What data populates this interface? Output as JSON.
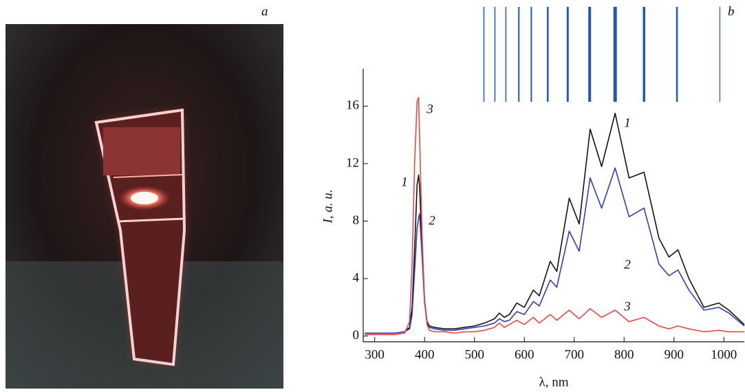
{
  "panel_labels": [
    "a",
    "b"
  ],
  "chart_data": {
    "type": "line",
    "xlabel": "λ, nm",
    "ylabel": "I, a. u.",
    "x": [
      280,
      300,
      320,
      340,
      360,
      370,
      375,
      380,
      385,
      388,
      390,
      395,
      400,
      405,
      410,
      420,
      440,
      460,
      480,
      500,
      520,
      540,
      550,
      560,
      570,
      585,
      600,
      618,
      630,
      652,
      665,
      690,
      710,
      732,
      755,
      782,
      810,
      840,
      870,
      890,
      908,
      930,
      960,
      990,
      1010,
      1041
    ],
    "series": [
      {
        "name": "1",
        "color": "#111111",
        "values": [
          0.2,
          0.2,
          0.2,
          0.2,
          0.3,
          0.6,
          2,
          6,
          10.5,
          11.2,
          10.5,
          6,
          2.5,
          1,
          0.7,
          0.6,
          0.5,
          0.5,
          0.6,
          0.7,
          0.9,
          1.2,
          1.6,
          1.3,
          1.5,
          2.3,
          2.0,
          3.2,
          2.8,
          5.2,
          4.5,
          9.6,
          7.8,
          14.4,
          11.8,
          15.5,
          11.0,
          11.4,
          6.8,
          5.5,
          6.0,
          4.0,
          2.0,
          2.3,
          1.8,
          0.8
        ]
      },
      {
        "name": "2",
        "color": "#2b3fb0",
        "values": [
          0.2,
          0.2,
          0.2,
          0.2,
          0.3,
          0.5,
          1.5,
          4.5,
          7.5,
          8.2,
          8.5,
          5.5,
          2.3,
          0.9,
          0.6,
          0.5,
          0.4,
          0.4,
          0.5,
          0.6,
          0.7,
          0.9,
          1.2,
          1.0,
          1.1,
          1.7,
          1.5,
          2.4,
          2.1,
          3.9,
          3.4,
          7.3,
          5.9,
          11.0,
          8.9,
          11.7,
          8.3,
          8.9,
          5.0,
          4.2,
          4.6,
          3.2,
          1.8,
          2.0,
          1.6,
          0.7
        ]
      },
      {
        "name": "3",
        "color": "#ee4444",
        "values": [
          0.1,
          0.1,
          0.1,
          0.1,
          0.2,
          1.0,
          5,
          12,
          16.3,
          16.6,
          14,
          7,
          2.5,
          0.8,
          0.4,
          0.3,
          0.3,
          0.2,
          0.3,
          0.3,
          0.4,
          0.6,
          0.9,
          0.6,
          0.8,
          1.1,
          0.8,
          1.3,
          0.9,
          1.5,
          1.1,
          1.8,
          1.2,
          1.9,
          1.3,
          1.8,
          1.0,
          1.3,
          0.7,
          0.5,
          0.7,
          0.5,
          0.3,
          0.4,
          0.3,
          0.3
        ]
      }
    ],
    "reference_lines": [
      519,
      541,
      563,
      589,
      614,
      647,
      687,
      731,
      782,
      840,
      906,
      992
    ],
    "reference_color": "#2255bb",
    "xlim": [
      277,
      1041
    ],
    "ylim": [
      -0.4,
      18.6
    ],
    "xticks": [
      300,
      400,
      500,
      600,
      700,
      800,
      900,
      1000
    ],
    "yticks": [
      0,
      4,
      8,
      12,
      16
    ]
  }
}
